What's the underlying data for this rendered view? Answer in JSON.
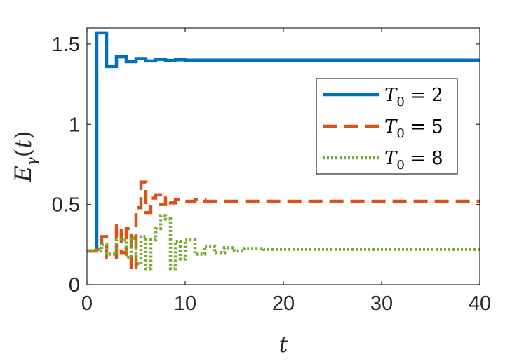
{
  "chart_data": {
    "type": "line",
    "xlabel": "t",
    "ylabel": "Eγ(t)",
    "xlim": [
      0,
      40
    ],
    "ylim": [
      0,
      1.6
    ],
    "xticks": [
      0,
      10,
      20,
      30,
      40
    ],
    "yticks": [
      0,
      0.5,
      1,
      1.5
    ],
    "xtick_labels": [
      "0",
      "10",
      "20",
      "30",
      "40"
    ],
    "ytick_labels": [
      "0",
      "0.5",
      "1",
      "1.5"
    ],
    "grid": false,
    "step": true,
    "legend_position": "right",
    "series": [
      {
        "name": "T0 = 2",
        "color": "#0072BD",
        "style": "solid",
        "x": [
          0,
          1,
          2,
          3,
          4,
          5,
          6,
          7,
          8,
          9,
          10,
          11,
          12,
          40
        ],
        "y": [
          0.21,
          1.57,
          1.36,
          1.42,
          1.39,
          1.41,
          1.395,
          1.405,
          1.398,
          1.402,
          1.4,
          1.4,
          1.4,
          1.4
        ]
      },
      {
        "name": "T0 = 5",
        "color": "#D95319",
        "style": "dashed",
        "x": [
          0,
          1,
          1.5,
          2,
          2.5,
          3,
          3.5,
          4,
          4.5,
          5,
          5.5,
          6,
          6.5,
          7,
          7.5,
          8,
          8.5,
          9,
          10,
          11,
          12,
          14,
          40
        ],
        "y": [
          0.21,
          0.22,
          0.3,
          0.17,
          0.17,
          0.37,
          0.2,
          0.35,
          0.09,
          0.48,
          0.64,
          0.45,
          0.54,
          0.56,
          0.5,
          0.54,
          0.51,
          0.53,
          0.52,
          0.53,
          0.52,
          0.52,
          0.52
        ]
      },
      {
        "name": "T0 = 8",
        "color": "#77AC30",
        "style": "dotted",
        "x": [
          0,
          1,
          1.5,
          2,
          3,
          4,
          4.5,
          5,
          5.5,
          6,
          6.5,
          7,
          7.5,
          8,
          8.5,
          9,
          9.5,
          10,
          11,
          12,
          13,
          14,
          15,
          16,
          18,
          40
        ],
        "y": [
          0.21,
          0.21,
          0.25,
          0.19,
          0.28,
          0.17,
          0.29,
          0.13,
          0.3,
          0.1,
          0.28,
          0.35,
          0.43,
          0.41,
          0.1,
          0.27,
          0.16,
          0.28,
          0.19,
          0.24,
          0.2,
          0.23,
          0.21,
          0.225,
          0.22,
          0.22
        ]
      }
    ]
  }
}
